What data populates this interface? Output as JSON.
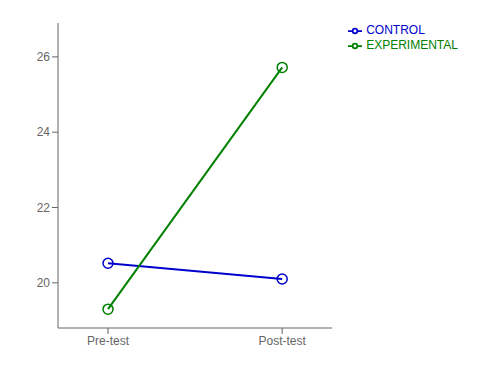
{
  "chart_data": {
    "type": "line",
    "categories": [
      "Pre-test",
      "Post-test"
    ],
    "series": [
      {
        "name": "CONTROL",
        "color": "#0000CC",
        "values": [
          20.52,
          20.1
        ],
        "marker": "circle"
      },
      {
        "name": "EXPERIMENTAL",
        "color": "#008000",
        "values": [
          19.3,
          25.72
        ],
        "marker": "circle"
      }
    ],
    "ylim": [
      18.8,
      26.9
    ],
    "yticks": [
      20,
      22,
      24,
      26
    ],
    "grid": false,
    "legend": "right"
  }
}
